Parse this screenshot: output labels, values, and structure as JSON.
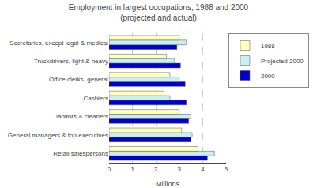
{
  "chart_data": {
    "type": "bar",
    "orientation": "horizontal",
    "title": "Employment in largest occupations, 1988 and 2000\n(projected and actual)",
    "categories": [
      "Retail salespersons",
      "General managers & top executives",
      "Janitors & cleaners",
      "Cashiers",
      "Office clerks, general",
      "Truckdrivers, light & heavy",
      "Secretaries, except legal & medical"
    ],
    "series": [
      {
        "name": "1988",
        "color": "#FFFFC0",
        "values": [
          3.8,
          3.1,
          3.0,
          2.35,
          2.6,
          2.45,
          3.0
        ]
      },
      {
        "name": "Projected 2000",
        "color": "#C8F0F0",
        "values": [
          4.5,
          3.55,
          3.5,
          2.6,
          3.0,
          2.8,
          3.3
        ]
      },
      {
        "name": "2000",
        "color": "#0000CC",
        "values": [
          4.2,
          3.5,
          3.4,
          3.3,
          3.25,
          3.05,
          2.9
        ]
      }
    ],
    "xlabel": "Millions",
    "xlim": [
      0,
      5
    ],
    "xticks": [
      0,
      1,
      2,
      3,
      4,
      5
    ],
    "grid": true,
    "legend": "upper right"
  }
}
